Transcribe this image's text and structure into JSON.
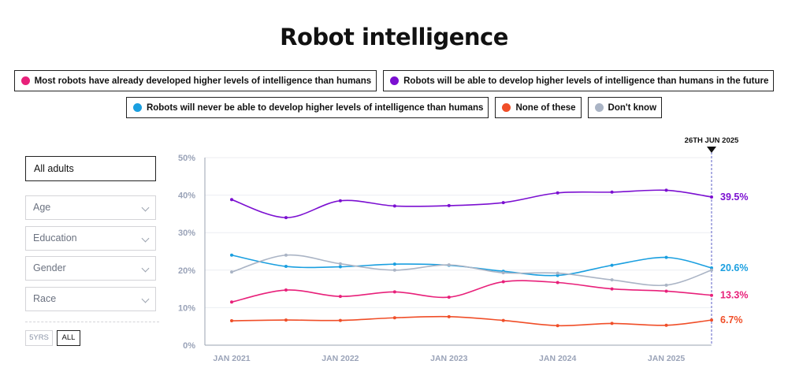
{
  "chart_data": {
    "type": "line",
    "title": "Robot intelligence",
    "x": [
      "2021-01",
      "2021-07",
      "2022-01",
      "2022-07",
      "2023-01",
      "2023-07",
      "2024-01",
      "2024-07",
      "2025-01",
      "2025-06"
    ],
    "xticks": [
      "JAN 2021",
      "JAN 2022",
      "JAN 2023",
      "JAN 2024",
      "JAN 2025"
    ],
    "yticks": [
      "0%",
      "10%",
      "20%",
      "30%",
      "40%",
      "50%"
    ],
    "ylim": [
      0,
      50
    ],
    "grid": true,
    "marker_label": "26TH JUN 2025",
    "series": [
      {
        "name": "Robots will be able to develop higher levels of intelligence than humans in the future",
        "color": "#7b0fd1",
        "values": [
          38.8,
          34,
          38.5,
          37.1,
          37.2,
          38,
          40.6,
          40.8,
          41.3,
          39.5
        ],
        "end_label": "39.5%"
      },
      {
        "name": "Robots will never be able to develop higher levels of intelligence than humans",
        "color": "#1a9fe0",
        "values": [
          24,
          21,
          20.9,
          21.6,
          21.3,
          19.7,
          18.6,
          21.3,
          23.4,
          20.6
        ],
        "end_label": "20.6%"
      },
      {
        "name": "Don't know",
        "color": "#aab4c5",
        "values": [
          19.5,
          24,
          21.7,
          20,
          21.4,
          19.3,
          19.2,
          17.4,
          16,
          20
        ],
        "end_label": ""
      },
      {
        "name": "Most robots have already developed higher levels of intelligence than humans",
        "color": "#e8207a",
        "values": [
          11.5,
          14.7,
          13,
          14.2,
          12.8,
          16.9,
          16.7,
          15,
          14.4,
          13.3
        ],
        "end_label": "13.3%"
      },
      {
        "name": "None of these",
        "color": "#f04e28",
        "values": [
          6.5,
          6.7,
          6.6,
          7.3,
          7.6,
          6.6,
          5.2,
          5.8,
          5.3,
          6.7
        ],
        "end_label": "6.7%"
      }
    ]
  },
  "legend": [
    {
      "label": "Most robots have already developed higher levels of intelligence than humans",
      "color": "#e8207a"
    },
    {
      "label": "Robots will be able to develop higher levels of intelligence than humans in the future",
      "color": "#7b0fd1"
    },
    {
      "label": "Robots will never be able to develop higher levels of intelligence than humans",
      "color": "#1a9fe0"
    },
    {
      "label": "None of these",
      "color": "#f04e28"
    },
    {
      "label": "Don't know",
      "color": "#aab4c5"
    }
  ],
  "filters": {
    "main": "All adults",
    "items": [
      "Age",
      "Education",
      "Gender",
      "Race"
    ]
  },
  "range": {
    "five_years": "5YRS",
    "all": "ALL"
  }
}
